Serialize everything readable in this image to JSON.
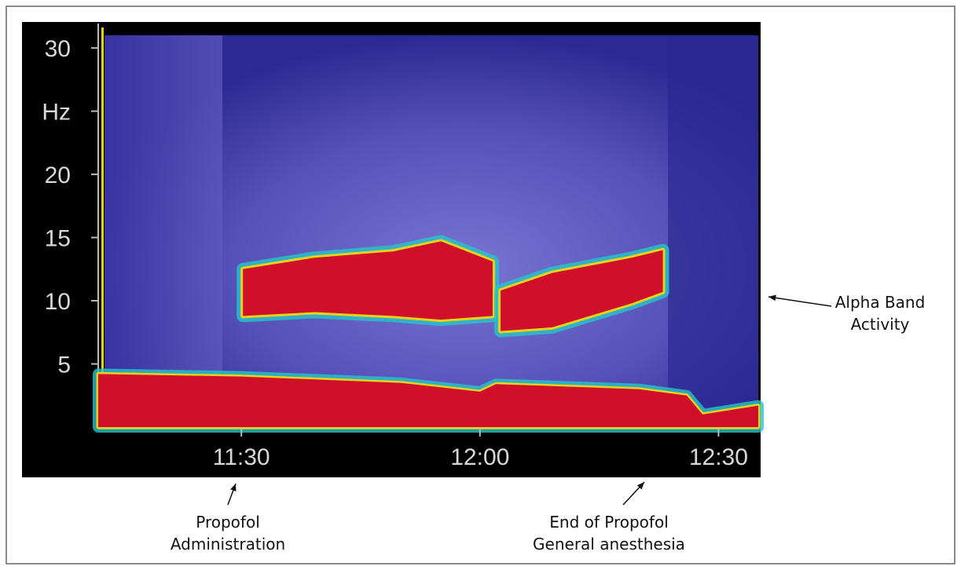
{
  "chart_data": {
    "type": "spectrogram",
    "xlim": [
      672,
      755
    ],
    "ylim": [
      0,
      31
    ],
    "xticks": [
      {
        "value": 690,
        "label": "11:30"
      },
      {
        "value": 720,
        "label": "12:00"
      },
      {
        "value": 750,
        "label": "12:30"
      }
    ],
    "yticks": [
      5,
      10,
      15,
      20,
      {
        "value": 25,
        "label": "Hz"
      },
      30
    ],
    "alpha_band": {
      "color": "#d0102a",
      "x": [
        690.2,
        699.2,
        709.1,
        715.1,
        721.6,
        null,
        722.6,
        729.1,
        739.1,
        743.0
      ],
      "low": [
        8.8,
        9.1,
        8.8,
        8.5,
        8.8,
        null,
        7.6,
        7.9,
        9.8,
        10.7
      ],
      "high": [
        12.5,
        13.4,
        13.9,
        14.7,
        13.1,
        null,
        10.8,
        12.2,
        13.4,
        14.0
      ]
    },
    "delta_band": {
      "color": "#d0102a",
      "x": [
        672,
        690,
        710,
        720,
        722,
        740,
        746,
        748,
        755
      ],
      "high": [
        4.2,
        4.0,
        3.5,
        2.8,
        3.4,
        3.0,
        2.5,
        1.0,
        1.7
      ]
    },
    "annotations": [
      {
        "lines": [
          "Alpha Band",
          "Activity"
        ]
      },
      {
        "lines": [
          "Propofol",
          "Administration"
        ]
      },
      {
        "lines": [
          "End of Propofol",
          "General anesthesia"
        ]
      }
    ]
  }
}
